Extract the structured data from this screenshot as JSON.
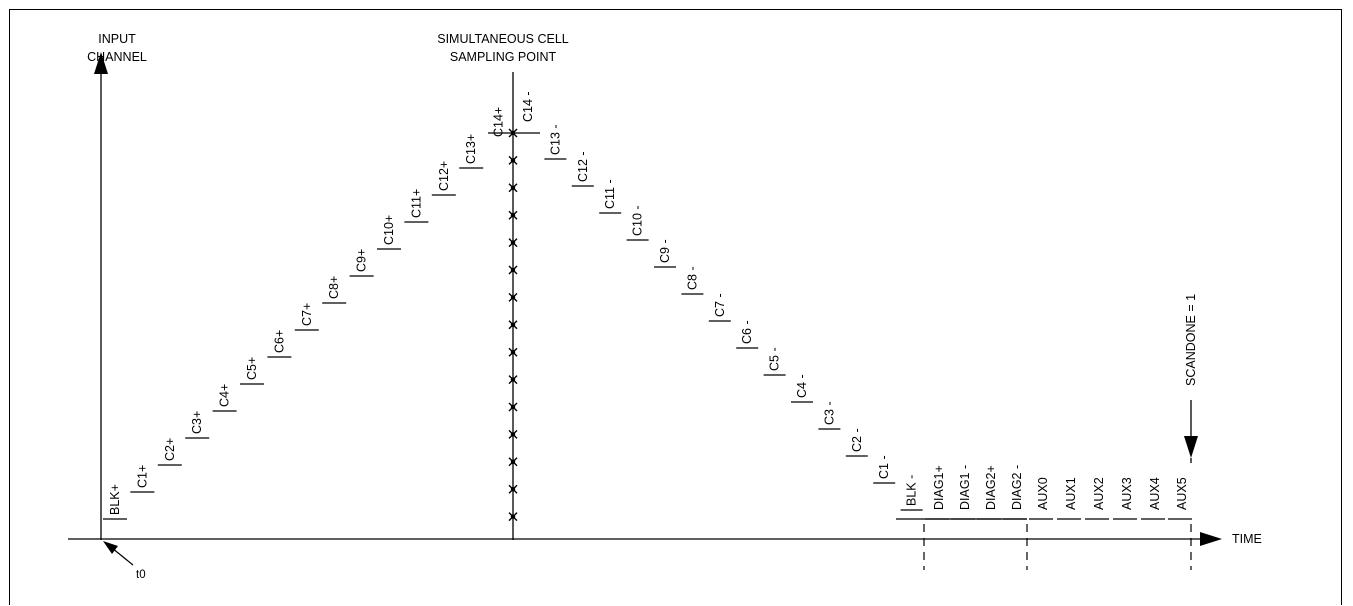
{
  "header": {
    "y_axis_label_line1": "INPUT",
    "y_axis_label_line2": "CHANNEL",
    "sampling_label_line1": "SIMULTANEOUS CELL",
    "sampling_label_line2": "SAMPLING POINT"
  },
  "axis": {
    "time_label": "TIME",
    "t0_label": "t0"
  },
  "marker": {
    "scandone_label": "SCANDONE = 1"
  },
  "ascending_channels": [
    "BLK+",
    "C1+",
    "C2+",
    "C3+",
    "C4+",
    "C5+",
    "C6+",
    "C7+",
    "C8+",
    "C9+",
    "C10+",
    "C11+",
    "C12+",
    "C13+",
    "C14+"
  ],
  "descending_channels": [
    "C14 -",
    "C13 -",
    "C12 -",
    "C11 -",
    "C10 -",
    "C9 -",
    "C8 -",
    "C7 -",
    "C6 -",
    "C5 -",
    "C4 -",
    "C3 -",
    "C2 -",
    "C1 -",
    "BLK -"
  ],
  "flat_channels": [
    "DIAG1+",
    "DIAG1 -",
    "DIAG2+",
    "DIAG2 -",
    "AUX0",
    "AUX1",
    "AUX2",
    "AUX3",
    "AUX4",
    "AUX5"
  ]
}
